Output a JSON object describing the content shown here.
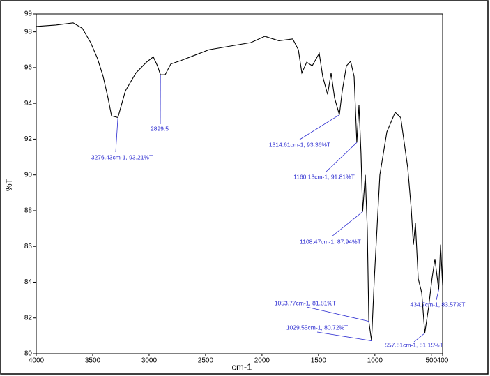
{
  "chart_data": {
    "type": "line",
    "xlabel": "cm-1",
    "ylabel": "%T",
    "xlim": [
      4000,
      400
    ],
    "ylim": [
      80,
      99
    ],
    "xticks": [
      4000,
      3500,
      3000,
      2500,
      2000,
      1500,
      1000,
      500,
      400
    ],
    "yticks": [
      80,
      82,
      84,
      86,
      88,
      90,
      92,
      94,
      96,
      98,
      99
    ],
    "series": [
      {
        "color": "#000000",
        "x": [
          4000,
          3827,
          3673,
          3592,
          3518,
          3457,
          3407,
          3364,
          3333,
          3276.43,
          3210,
          3117,
          3024,
          2963,
          2926,
          2899.5,
          2858,
          2808,
          2716,
          2592,
          2469,
          2283,
          2098,
          1975,
          1851,
          1728,
          1678,
          1647,
          1604,
          1555,
          1493,
          1462,
          1419,
          1388,
          1357,
          1314.61,
          1289,
          1252,
          1215,
          1184,
          1160.13,
          1141,
          1123,
          1108.47,
          1085,
          1067,
          1053.77,
          1029.55,
          1005,
          956,
          894,
          820,
          771,
          709,
          678,
          659,
          641,
          616,
          585,
          557.81,
          524,
          494,
          468,
          434.7,
          418,
          400
        ],
        "values": [
          98.3,
          98.38,
          98.5,
          98.2,
          97.4,
          96.5,
          95.5,
          94.3,
          93.3,
          93.21,
          94.7,
          95.7,
          96.3,
          96.6,
          96.1,
          95.6,
          95.6,
          96.2,
          96.4,
          96.7,
          97.0,
          97.2,
          97.4,
          97.75,
          97.5,
          97.6,
          97.0,
          95.7,
          96.3,
          96.1,
          96.8,
          95.5,
          94.5,
          95.7,
          94.3,
          93.36,
          94.7,
          96.1,
          96.35,
          95.5,
          91.81,
          93.9,
          91.2,
          87.94,
          90.0,
          86.9,
          81.81,
          80.72,
          84.2,
          90.0,
          92.4,
          93.5,
          93.2,
          90.4,
          88.1,
          86.1,
          87.3,
          84.2,
          83.4,
          81.15,
          82.6,
          84.2,
          85.3,
          83.57,
          86.1,
          83.8
        ]
      }
    ],
    "annotations": [
      {
        "text": "3276.43cm-1, 93.21%T",
        "x": 3276.43,
        "y": 93.21
      },
      {
        "text": "2899.5",
        "x": 2899.5,
        "y": 95.6
      },
      {
        "text": "1314.61cm-1, 93.36%T",
        "x": 1314.61,
        "y": 93.36
      },
      {
        "text": "1160.13cm-1, 91.81%T",
        "x": 1160.13,
        "y": 91.81
      },
      {
        "text": "1108.47cm-1, 87.94%T",
        "x": 1108.47,
        "y": 87.94
      },
      {
        "text": "1053.77cm-1, 81.81%T",
        "x": 1053.77,
        "y": 81.81
      },
      {
        "text": "1029.55cm-1, 80.72%T",
        "x": 1029.55,
        "y": 80.72
      },
      {
        "text": "557.81cm-1, 81.15%T",
        "x": 557.81,
        "y": 81.15
      },
      {
        "text": "434.7cm-1, 83.57%T",
        "x": 434.7,
        "y": 83.57
      }
    ]
  }
}
